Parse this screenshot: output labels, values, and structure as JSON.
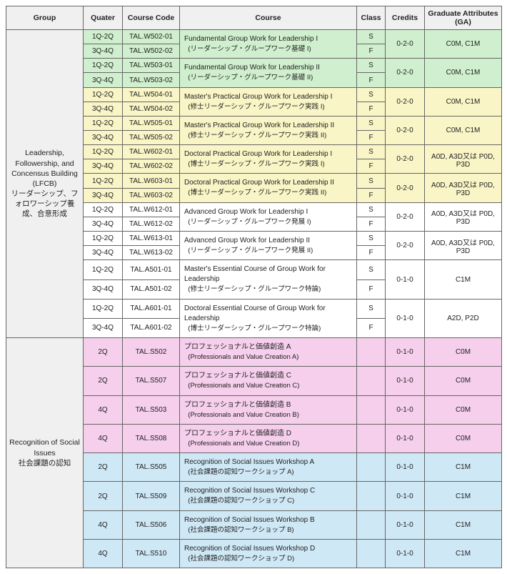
{
  "headers": {
    "group": "Group",
    "quater": "Quater",
    "code": "Course Code",
    "course": "Course",
    "class": "Class",
    "credits": "Credits",
    "ga": "Graduate Attributes (GA)"
  },
  "colors": {
    "green": "#d0efce",
    "yellow": "#f9f5c6",
    "white": "#ffffff",
    "pink": "#f5cfec",
    "blue": "#cfe8f5",
    "header_bg": "#f0f0f0",
    "border": "#666666"
  },
  "groups": [
    {
      "label_en": "Leadership, Followership, and Concensus Building (LFCB)",
      "label_jp": "リーダーシップ、フォロワーシップ養成、合意形成",
      "rowspan": 20,
      "courses": [
        {
          "color": "green",
          "rowspan": 2,
          "rows": [
            [
              "1Q-2Q",
              "TAL.W502-01",
              "S"
            ],
            [
              "3Q-4Q",
              "TAL.W502-02",
              "F"
            ]
          ],
          "course_en": "Fundamental Group Work for Leadership I",
          "course_jp": "(リーダーシップ・グループワーク基礎 I)",
          "credits": "0-2-0",
          "ga": "C0M, C1M"
        },
        {
          "color": "green",
          "rowspan": 2,
          "rows": [
            [
              "1Q-2Q",
              "TAL.W503-01",
              "S"
            ],
            [
              "3Q-4Q",
              "TAL.W503-02",
              "F"
            ]
          ],
          "course_en": "Fundamental Group Work for Leadership II",
          "course_jp": "(リーダーシップ・グループワーク基礎 II)",
          "credits": "0-2-0",
          "ga": "C0M, C1M"
        },
        {
          "color": "yellow",
          "rowspan": 2,
          "rows": [
            [
              "1Q-2Q",
              "TAL.W504-01",
              "S"
            ],
            [
              "3Q-4Q",
              "TAL.W504-02",
              "F"
            ]
          ],
          "course_en": "Master's Practical Group Work for Leadership I",
          "course_jp": "(修士リーダーシップ・グループワーク実践 I)",
          "credits": "0-2-0",
          "ga": "C0M, C1M"
        },
        {
          "color": "yellow",
          "rowspan": 2,
          "rows": [
            [
              "1Q-2Q",
              "TAL.W505-01",
              "S"
            ],
            [
              "3Q-4Q",
              "TAL.W505-02",
              "F"
            ]
          ],
          "course_en": "Master's Practical Group Work for Leadership II",
          "course_jp": "(修士リーダーシップ・グループワーク実践 II)",
          "credits": "0-2-0",
          "ga": "C0M, C1M"
        },
        {
          "color": "yellow",
          "rowspan": 2,
          "rows": [
            [
              "1Q-2Q",
              "TAL.W602-01",
              "S"
            ],
            [
              "3Q-4Q",
              "TAL.W602-02",
              "F"
            ]
          ],
          "course_en": "Doctoral Practical Group Work for Leadership I",
          "course_jp": "(博士リーダーシップ・グループワーク実践 I)",
          "credits": "0-2-0",
          "ga": "A0D, A3D又は P0D, P3D"
        },
        {
          "color": "yellow",
          "rowspan": 2,
          "rows": [
            [
              "1Q-2Q",
              "TAL.W603-01",
              "S"
            ],
            [
              "3Q-4Q",
              "TAL.W603-02",
              "F"
            ]
          ],
          "course_en": "Doctoral Practical Group Work for Leadership II",
          "course_jp": "(博士リーダーシップ・グループワーク実践 II)",
          "credits": "0-2-0",
          "ga": "A0D, A3D又は P0D, P3D"
        },
        {
          "color": "white",
          "rowspan": 2,
          "rows": [
            [
              "1Q-2Q",
              "TAL.W612-01",
              "S"
            ],
            [
              "3Q-4Q",
              "TAL.W612-02",
              "F"
            ]
          ],
          "course_en": "Advanced Group Work for Leadership I",
          "course_jp": "(リーダーシップ・グループワーク発展 I)",
          "credits": "0-2-0",
          "ga": "A0D, A3D又は P0D, P3D"
        },
        {
          "color": "white",
          "rowspan": 2,
          "rows": [
            [
              "1Q-2Q",
              "TAL.W613-01",
              "S"
            ],
            [
              "3Q-4Q",
              "TAL.W613-02",
              "F"
            ]
          ],
          "course_en": "Advanced Group Work for Leadership II",
          "course_jp": "(リーダーシップ・グループワーク発展 II)",
          "credits": "0-2-0",
          "ga": "A0D, A3D又は P0D, P3D"
        },
        {
          "color": "white",
          "rowspan": 2,
          "rows": [
            [
              "1Q-2Q",
              "TAL.A501-01",
              "S"
            ],
            [
              "3Q-4Q",
              "TAL.A501-02",
              "F"
            ]
          ],
          "course_en": "Master's Essential Course of Group Work for Leadership",
          "course_jp": "(修士リーダーシップ・グループワーク特論)",
          "credits": "0-1-0",
          "ga": "C1M"
        },
        {
          "color": "white",
          "rowspan": 2,
          "rows": [
            [
              "1Q-2Q",
              "TAL.A601-01",
              "S"
            ],
            [
              "3Q-4Q",
              "TAL.A601-02",
              "F"
            ]
          ],
          "course_en": "Doctoral Essential Course of Group Work for Leadership",
          "course_jp": "(博士リーダーシップ・グループワーク特論)",
          "credits": "0-1-0",
          "ga": "A2D, P2D"
        }
      ]
    },
    {
      "label_en": "Recognition of Social Issues",
      "label_jp": "社会課題の認知",
      "rowspan": 8,
      "courses": [
        {
          "color": "pink",
          "rowspan": 1,
          "rows": [
            [
              "2Q",
              "TAL.S502",
              ""
            ]
          ],
          "course_en": "プロフェッショナルと価値創造 A",
          "course_jp": "(Professionals and Value Creation A)",
          "credits": "0-1-0",
          "ga": "C0M"
        },
        {
          "color": "pink",
          "rowspan": 1,
          "rows": [
            [
              "2Q",
              "TAL.S507",
              ""
            ]
          ],
          "course_en": "プロフェッショナルと価値創造 C",
          "course_jp": "(Professionals and Value Creation C)",
          "credits": "0-1-0",
          "ga": "C0M"
        },
        {
          "color": "pink",
          "rowspan": 1,
          "rows": [
            [
              "4Q",
              "TAL.S503",
              ""
            ]
          ],
          "course_en": "プロフェッショナルと価値創造 B",
          "course_jp": "(Professionals and Value Creation B)",
          "credits": "0-1-0",
          "ga": "C0M"
        },
        {
          "color": "pink",
          "rowspan": 1,
          "rows": [
            [
              "4Q",
              "TAL.S508",
              ""
            ]
          ],
          "course_en": "プロフェッショナルと価値創造 D",
          "course_jp": "(Professionals and Value Creation D)",
          "credits": "0-1-0",
          "ga": "C0M"
        },
        {
          "color": "blue",
          "rowspan": 1,
          "rows": [
            [
              "2Q",
              "TAL.S505",
              ""
            ]
          ],
          "course_en": "Recognition of Social Issues Workshop A",
          "course_jp": "(社会課題の認知ワークショップ A)",
          "credits": "0-1-0",
          "ga": "C1M"
        },
        {
          "color": "blue",
          "rowspan": 1,
          "rows": [
            [
              "2Q",
              "TAL.S509",
              ""
            ]
          ],
          "course_en": "Recognition of Social Issues Workshop C",
          "course_jp": "(社会課題の認知ワークショップ C)",
          "credits": "0-1-0",
          "ga": "C1M"
        },
        {
          "color": "blue",
          "rowspan": 1,
          "rows": [
            [
              "4Q",
              "TAL.S506",
              ""
            ]
          ],
          "course_en": "Recognition of Social Issues Workshop B",
          "course_jp": "(社会課題の認知ワークショップ B)",
          "credits": "0-1-0",
          "ga": "C1M"
        },
        {
          "color": "blue",
          "rowspan": 1,
          "rows": [
            [
              "4Q",
              "TAL.S510",
              ""
            ]
          ],
          "course_en": "Recognition of Social Issues Workshop D",
          "course_jp": "(社会課題の認知ワークショップ D)",
          "credits": "0-1-0",
          "ga": "C1M"
        }
      ]
    }
  ]
}
